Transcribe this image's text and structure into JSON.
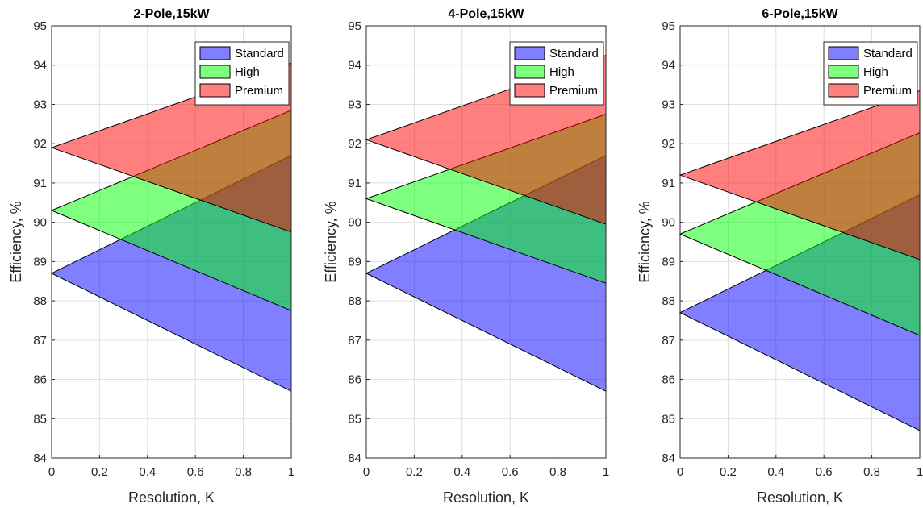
{
  "chart_data": [
    {
      "type": "area",
      "title": "2-Pole,15kW",
      "xlabel": "Resolution, K",
      "ylabel": "Efficiency, %",
      "xlim": [
        0,
        1
      ],
      "ylim": [
        84,
        95
      ],
      "x_ticks": [
        "0",
        "0.2",
        "0.4",
        "0.6",
        "0.8",
        "1"
      ],
      "y_ticks": [
        "84",
        "85",
        "86",
        "87",
        "88",
        "89",
        "90",
        "91",
        "92",
        "93",
        "94",
        "95"
      ],
      "grid": true,
      "legend_position": "top-right",
      "series": [
        {
          "name": "Standard",
          "color": "#0000ff",
          "x": [
            0,
            1
          ],
          "upper": [
            88.7,
            91.7
          ],
          "lower": [
            88.7,
            85.7
          ]
        },
        {
          "name": "High",
          "color": "#00ff00",
          "x": [
            0,
            1
          ],
          "upper": [
            90.3,
            92.85
          ],
          "lower": [
            90.3,
            87.75
          ]
        },
        {
          "name": "Premium",
          "color": "#ff0000",
          "x": [
            0,
            1
          ],
          "upper": [
            91.9,
            94.05
          ],
          "lower": [
            91.9,
            89.75
          ]
        }
      ]
    },
    {
      "type": "area",
      "title": "4-Pole,15kW",
      "xlabel": "Resolution, K",
      "ylabel": "Efficiency, %",
      "xlim": [
        0,
        1
      ],
      "ylim": [
        84,
        95
      ],
      "x_ticks": [
        "0",
        "0.2",
        "0.4",
        "0.6",
        "0.8",
        "1"
      ],
      "y_ticks": [
        "84",
        "85",
        "86",
        "87",
        "88",
        "89",
        "90",
        "91",
        "92",
        "93",
        "94",
        "95"
      ],
      "grid": true,
      "legend_position": "top-right",
      "series": [
        {
          "name": "Standard",
          "color": "#0000ff",
          "x": [
            0,
            1
          ],
          "upper": [
            88.7,
            91.7
          ],
          "lower": [
            88.7,
            85.7
          ]
        },
        {
          "name": "High",
          "color": "#00ff00",
          "x": [
            0,
            1
          ],
          "upper": [
            90.6,
            92.75
          ],
          "lower": [
            90.6,
            88.45
          ]
        },
        {
          "name": "Premium",
          "color": "#ff0000",
          "x": [
            0,
            1
          ],
          "upper": [
            92.1,
            94.25
          ],
          "lower": [
            92.1,
            89.95
          ]
        }
      ]
    },
    {
      "type": "area",
      "title": "6-Pole,15kW",
      "xlabel": "Resolution, K",
      "ylabel": "Efficiency, %",
      "xlim": [
        0,
        1
      ],
      "ylim": [
        84,
        95
      ],
      "x_ticks": [
        "0",
        "0.2",
        "0.4",
        "0.6",
        "0.8",
        "1"
      ],
      "y_ticks": [
        "84",
        "85",
        "86",
        "87",
        "88",
        "89",
        "90",
        "91",
        "92",
        "93",
        "94",
        "95"
      ],
      "grid": true,
      "legend_position": "top-right",
      "series": [
        {
          "name": "Standard",
          "color": "#0000ff",
          "x": [
            0,
            1
          ],
          "upper": [
            87.7,
            90.7
          ],
          "lower": [
            87.7,
            84.7
          ]
        },
        {
          "name": "High",
          "color": "#00ff00",
          "x": [
            0,
            1
          ],
          "upper": [
            89.7,
            92.28
          ],
          "lower": [
            89.7,
            87.12
          ]
        },
        {
          "name": "Premium",
          "color": "#ff0000",
          "x": [
            0,
            1
          ],
          "upper": [
            91.2,
            93.35
          ],
          "lower": [
            91.2,
            89.05
          ]
        }
      ]
    }
  ]
}
